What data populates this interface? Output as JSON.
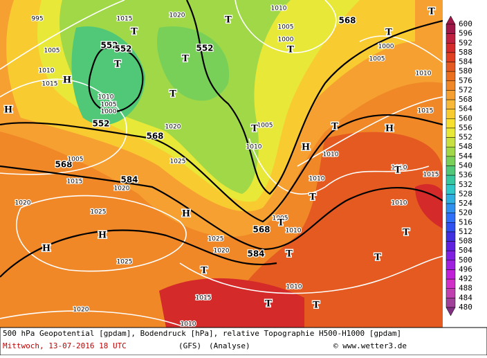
{
  "map": {
    "geopotential_labels": [
      "552",
      "552",
      "552",
      "552",
      "568",
      "568",
      "568",
      "568",
      "584",
      "584"
    ],
    "isobar_labels": [
      "995",
      "1005",
      "1010",
      "1015",
      "1015",
      "1020",
      "1010",
      "1005",
      "1000",
      "1020",
      "1025",
      "1005",
      "1015",
      "1020",
      "1020",
      "1025",
      "1025",
      "1020",
      "1025",
      "1015",
      "1020",
      "1010",
      "1010",
      "1005",
      "1000",
      "1005",
      "1000",
      "1005",
      "1010",
      "1010",
      "1010",
      "1005",
      "1010",
      "1010",
      "1010",
      "1015",
      "1015",
      "1010",
      "1010"
    ],
    "highs": [
      "H",
      "H",
      "H",
      "H",
      "H",
      "H",
      "H"
    ],
    "lows": [
      "T",
      "T",
      "T",
      "T",
      "T",
      "T",
      "T",
      "T",
      "T",
      "T",
      "T",
      "T",
      "T",
      "T",
      "T",
      "T",
      "T",
      "T",
      "T"
    ]
  },
  "legend": {
    "values": [
      600,
      596,
      592,
      588,
      584,
      580,
      576,
      572,
      568,
      564,
      560,
      556,
      552,
      548,
      544,
      540,
      536,
      532,
      528,
      524,
      520,
      516,
      512,
      508,
      504,
      500,
      496,
      492,
      488,
      484,
      480
    ],
    "colors": [
      "#a01848",
      "#c02040",
      "#d42a2a",
      "#e04020",
      "#e45a20",
      "#ea7020",
      "#f08828",
      "#f5a030",
      "#f8b838",
      "#f8cc30",
      "#f8e030",
      "#e8e838",
      "#c8e040",
      "#a0d848",
      "#78d058",
      "#50c878",
      "#38c8a0",
      "#30c8c8",
      "#30b0e0",
      "#3090f0",
      "#3070f8",
      "#3050f0",
      "#4030e0",
      "#6020e0",
      "#8020e0",
      "#a020e0",
      "#c020d8",
      "#d030c8",
      "#c040b0",
      "#a04098",
      "#803080"
    ]
  },
  "footer": {
    "line1": "500 hPa Geopotential [gpdam], Bodendruck [hPa], relative Topographie H500-H1000 [gpdam]",
    "date": "Mittwoch, 13-07-2016  18 UTC",
    "model": "(GFS)",
    "run": "(Analyse)",
    "credit": "© www.wetter3.de"
  }
}
